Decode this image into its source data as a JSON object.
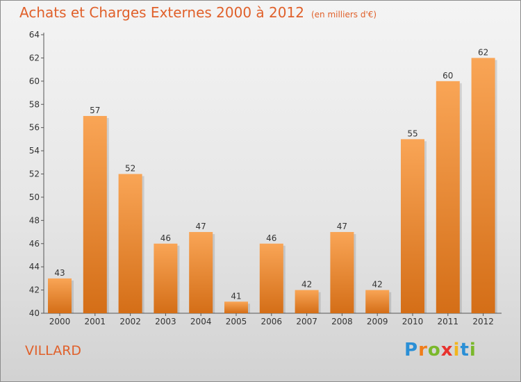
{
  "header": {
    "title": "Achats et Charges Externes 2000 à 2012",
    "unit": "(en milliers d'€)"
  },
  "footer": {
    "commune": "VILLARD",
    "brand_letters": [
      "P",
      "r",
      "o",
      "x",
      "i",
      "t",
      "i"
    ],
    "brand_colors": [
      "#2a8fd6",
      "#f07d1a",
      "#7ab82b",
      "#e8322e",
      "#f2b51d",
      "#2a8fd6",
      "#7ab82b"
    ]
  },
  "colors": {
    "bar_top": "#f9a556",
    "bar_bottom": "#d46e17",
    "title": "#e0602a",
    "axis": "#555555"
  },
  "chart_data": {
    "type": "bar",
    "title": "Achats et Charges Externes 2000 à 2012",
    "subtitle": "(en milliers d'€)",
    "categories": [
      "2000",
      "2001",
      "2002",
      "2003",
      "2004",
      "2005",
      "2006",
      "2007",
      "2008",
      "2009",
      "2010",
      "2011",
      "2012"
    ],
    "values": [
      43,
      57,
      52,
      46,
      47,
      41,
      46,
      42,
      47,
      42,
      55,
      60,
      62
    ],
    "ylim": [
      40,
      64
    ],
    "yticks": [
      40,
      42,
      44,
      46,
      48,
      50,
      52,
      54,
      56,
      58,
      60,
      62,
      64
    ],
    "grid": false,
    "data_labels": true
  }
}
